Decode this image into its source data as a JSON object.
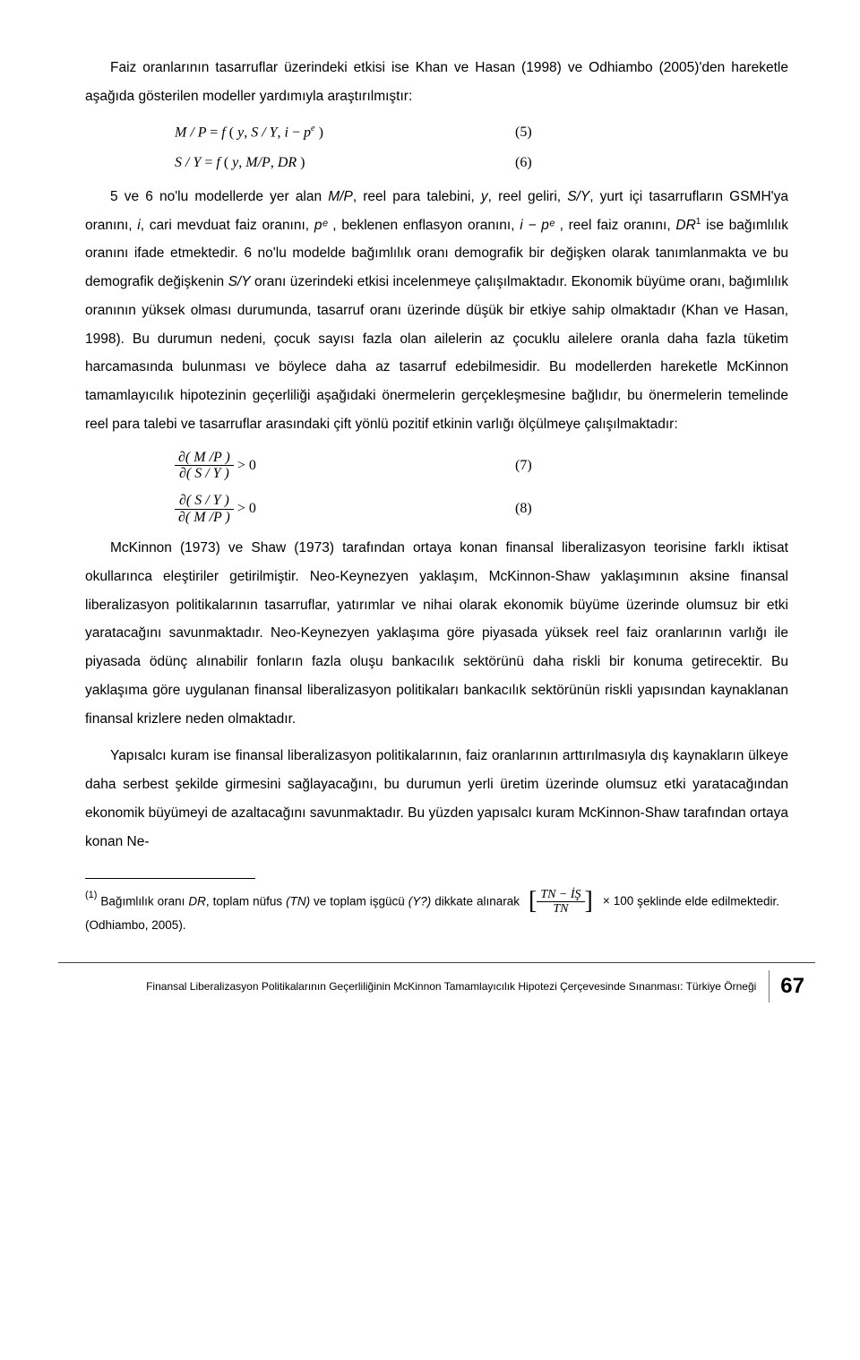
{
  "para1": "Faiz oranlarının tasarruflar üzerindeki etkisi ise Khan ve Hasan (1998) ve Odhiambo (2005)'den hareketle aşağıda gösterilen modeller yardımıyla araştırılmıştır:",
  "eq5": {
    "formula": "M / P = f ( y , S / Y , i − pᵉ )",
    "num": "(5)"
  },
  "eq6": {
    "formula": "S / Y = f ( y , M / P , DR )",
    "num": "(6)"
  },
  "para2_a": "5 ve 6 no'lu modellerde yer alan ",
  "para2_b": ", reel para talebini, ",
  "para2_c": ", reel geliri, ",
  "para2_d": ", yurt içi tasarrufların GSMH'ya oranını, ",
  "para2_e": ", cari mevduat faiz oranını, ",
  "para2_f": " , beklenen enflasyon oranını,  ",
  "para2_g": " , reel faiz oranını,  ",
  "para2_h": "  ise bağımlılık oranını ifade etmektedir. 6 no'lu modelde  bağımlılık oranı demografik bir değişken olarak tanımlanmakta ve bu demografik değişkenin ",
  "para2_i": " oranı üzerindeki etkisi incelenmeye çalışılmaktadır. Ekonomik büyüme oranı, bağımlılık oranının yüksek olması durumunda, tasarruf oranı üzerinde düşük bir etkiye sahip olmaktadır (Khan ve Hasan, 1998). Bu durumun nedeni, çocuk sayısı fazla olan ailelerin az çocuklu ailelere oranla daha fazla tüketim harcamasında bulunması ve böylece daha az tasarruf edebilmesidir. Bu modellerden hareketle McKinnon tamamlayıcılık hipotezinin geçerliliği aşağıdaki önermelerin gerçekleşmesine bağlıdır, bu önermelerin temelinde reel para talebi ve tasarruflar arasındaki çift yönlü pozitif etkinin varlığı ölçülmeye çalışılmaktadır:",
  "sym_MP": "M/P",
  "sym_y": "y",
  "sym_SY": "S/Y",
  "sym_i": "i",
  "sym_pe": "pᵉ",
  "sym_ipe": "i − pᵉ",
  "sym_DR": "DR",
  "sym_DR1": "1",
  "eq7": {
    "num_top": "∂( M /P )",
    "num_bot": "∂( S / Y )",
    "rhs": " > 0",
    "num": "(7)"
  },
  "eq8": {
    "num_top": "∂(  S / Y  )",
    "num_bot": "∂( M /P )",
    "rhs": " > 0",
    "num": "(8)"
  },
  "para3": "McKinnon (1973) ve Shaw (1973) tarafından ortaya konan finansal liberalizasyon teorisine farklı iktisat okullarınca eleştiriler getirilmiştir. Neo-Keynezyen yaklaşım, McKinnon-Shaw yaklaşımının aksine finansal liberalizasyon politikalarının tasarruflar, yatırımlar ve nihai olarak ekonomik büyüme üzerinde olumsuz bir etki yaratacağını savunmaktadır. Neo-Keynezyen yaklaşıma göre piyasada yüksek reel faiz oranlarının varlığı ile piyasada ödünç alınabilir fonların fazla oluşu bankacılık sektörünü daha riskli bir konuma getirecektir. Bu yaklaşıma göre uygulanan finansal liberalizasyon politikaları bankacılık sektörünün riskli yapısından kaynaklanan finansal krizlere neden olmaktadır.",
  "para4": "Yapısalcı kuram ise finansal liberalizasyon politikalarının, faiz oranlarının arttırılmasıyla dış kaynakların ülkeye daha serbest şekilde girmesini sağlayacağını, bu durumun yerli üretim üzerinde olumsuz etki yaratacağından ekonomik büyümeyi de azaltacağını savunmaktadır. Bu yüzden yapısalcı kuram McKinnon-Shaw tarafından ortaya konan Ne-",
  "footnote": {
    "label": "(1)",
    "a": " Bağımlılık oranı ",
    "dr": "DR",
    "b": ", toplam nüfus ",
    "tn": "(TN)",
    "c": " ve toplam işgücü ",
    "y": "(Y?)",
    "d": " dikkate alınarak ",
    "frac_top": "TN − İŞ",
    "frac_bot": "TN",
    "times": " × 100",
    "e": " şeklinde elde edilmektedir.(Odhiambo, 2005)."
  },
  "footer": {
    "title": "Finansal Liberalizasyon Politikalarının Geçerliliğinin McKinnon Tamamlayıcılık Hipotezi Çerçevesinde Sınanması: Türkiye Örneği",
    "page": "67"
  }
}
